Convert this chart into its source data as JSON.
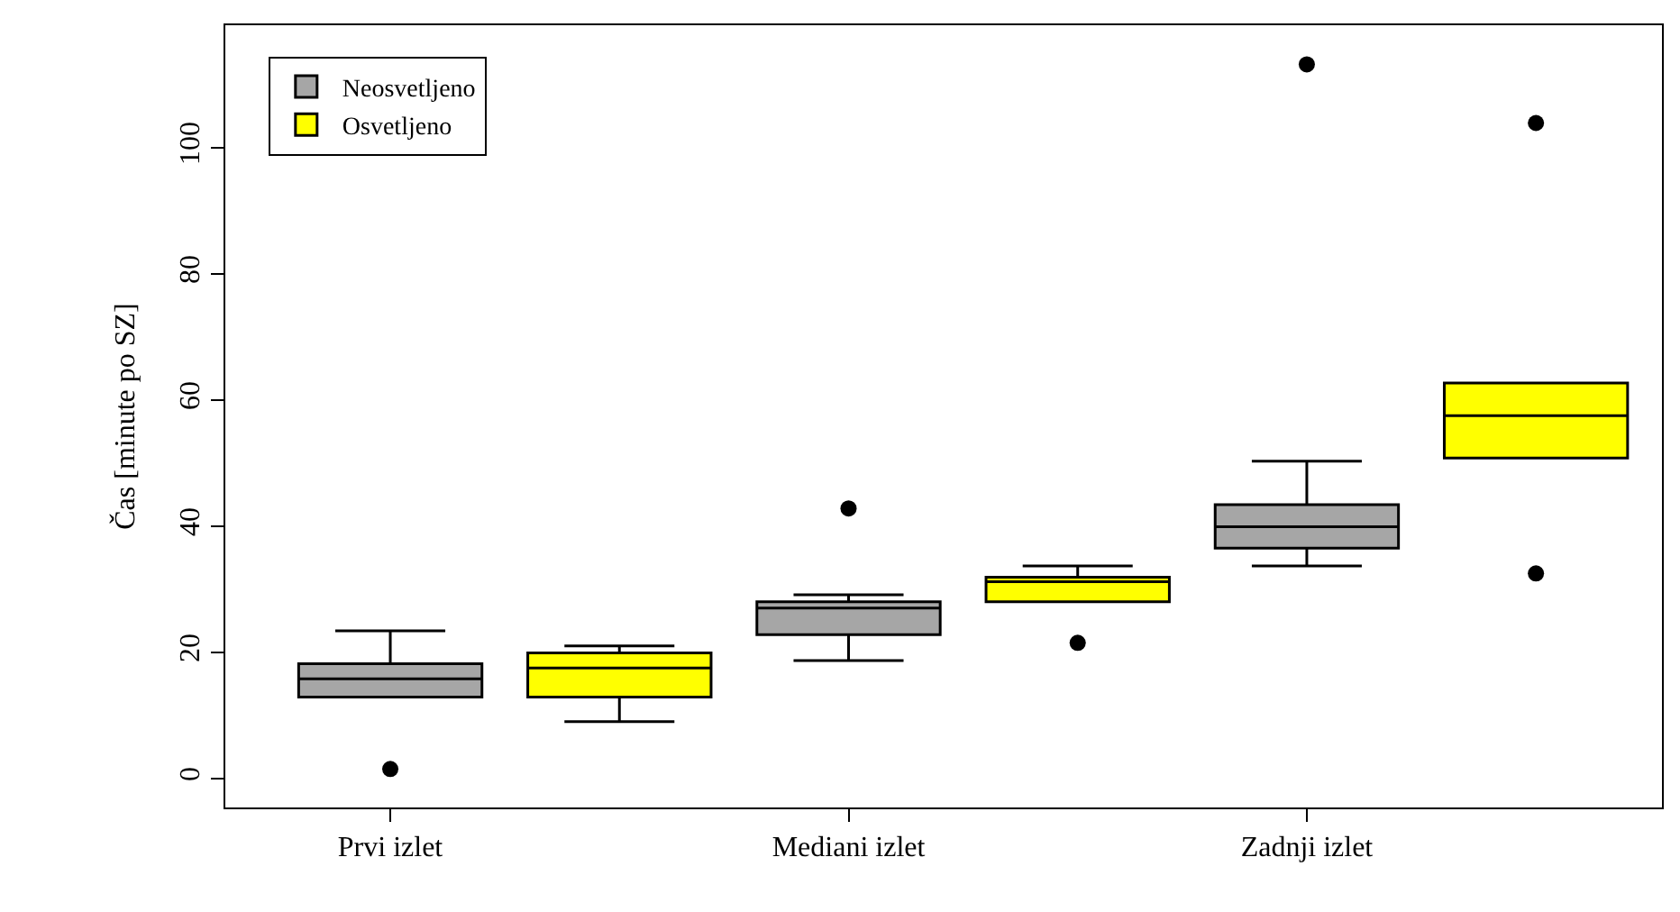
{
  "chart_data": {
    "type": "box",
    "ylabel": "Čas [minute po SZ]",
    "categories": [
      "Prvi izlet",
      null,
      "Mediani izlet",
      null,
      "Zadnji izlet",
      null
    ],
    "ylim": [
      -4.6,
      119.4
    ],
    "yticks": [
      0,
      20,
      40,
      60,
      80,
      100
    ],
    "grid": false,
    "legend": "top left",
    "series": [
      {
        "name": "Neosvetljeno",
        "color": "#a6a6a6",
        "boxes": [
          {
            "low": 12.9,
            "q1": 12.9,
            "median": 15.8,
            "q3": 18.2,
            "high": 23.4,
            "outliers": [
              1.5
            ]
          },
          null,
          {
            "low": 18.7,
            "q1": 22.8,
            "median": 27,
            "q3": 28,
            "high": 29.1,
            "outliers": [
              42.8
            ]
          },
          null,
          {
            "low": 33.7,
            "q1": 36.5,
            "median": 39.9,
            "q3": 43.4,
            "high": 50.3,
            "outliers": [
              113.2
            ]
          },
          null
        ]
      },
      {
        "name": "Osvetljeno",
        "color": "#ffff00",
        "boxes": [
          null,
          {
            "low": 9,
            "q1": 12.9,
            "median": 17.5,
            "q3": 19.9,
            "high": 21
          },
          null,
          {
            "low": 28,
            "q1": 28,
            "median": 31.2,
            "q3": 31.9,
            "high": 33.7,
            "outliers": [
              21.5
            ]
          },
          null,
          {
            "low": 50.8,
            "q1": 50.8,
            "median": 57.5,
            "q3": 62.7,
            "high": 62.7,
            "outliers": [
              103.9,
              32.5
            ]
          }
        ]
      }
    ]
  }
}
